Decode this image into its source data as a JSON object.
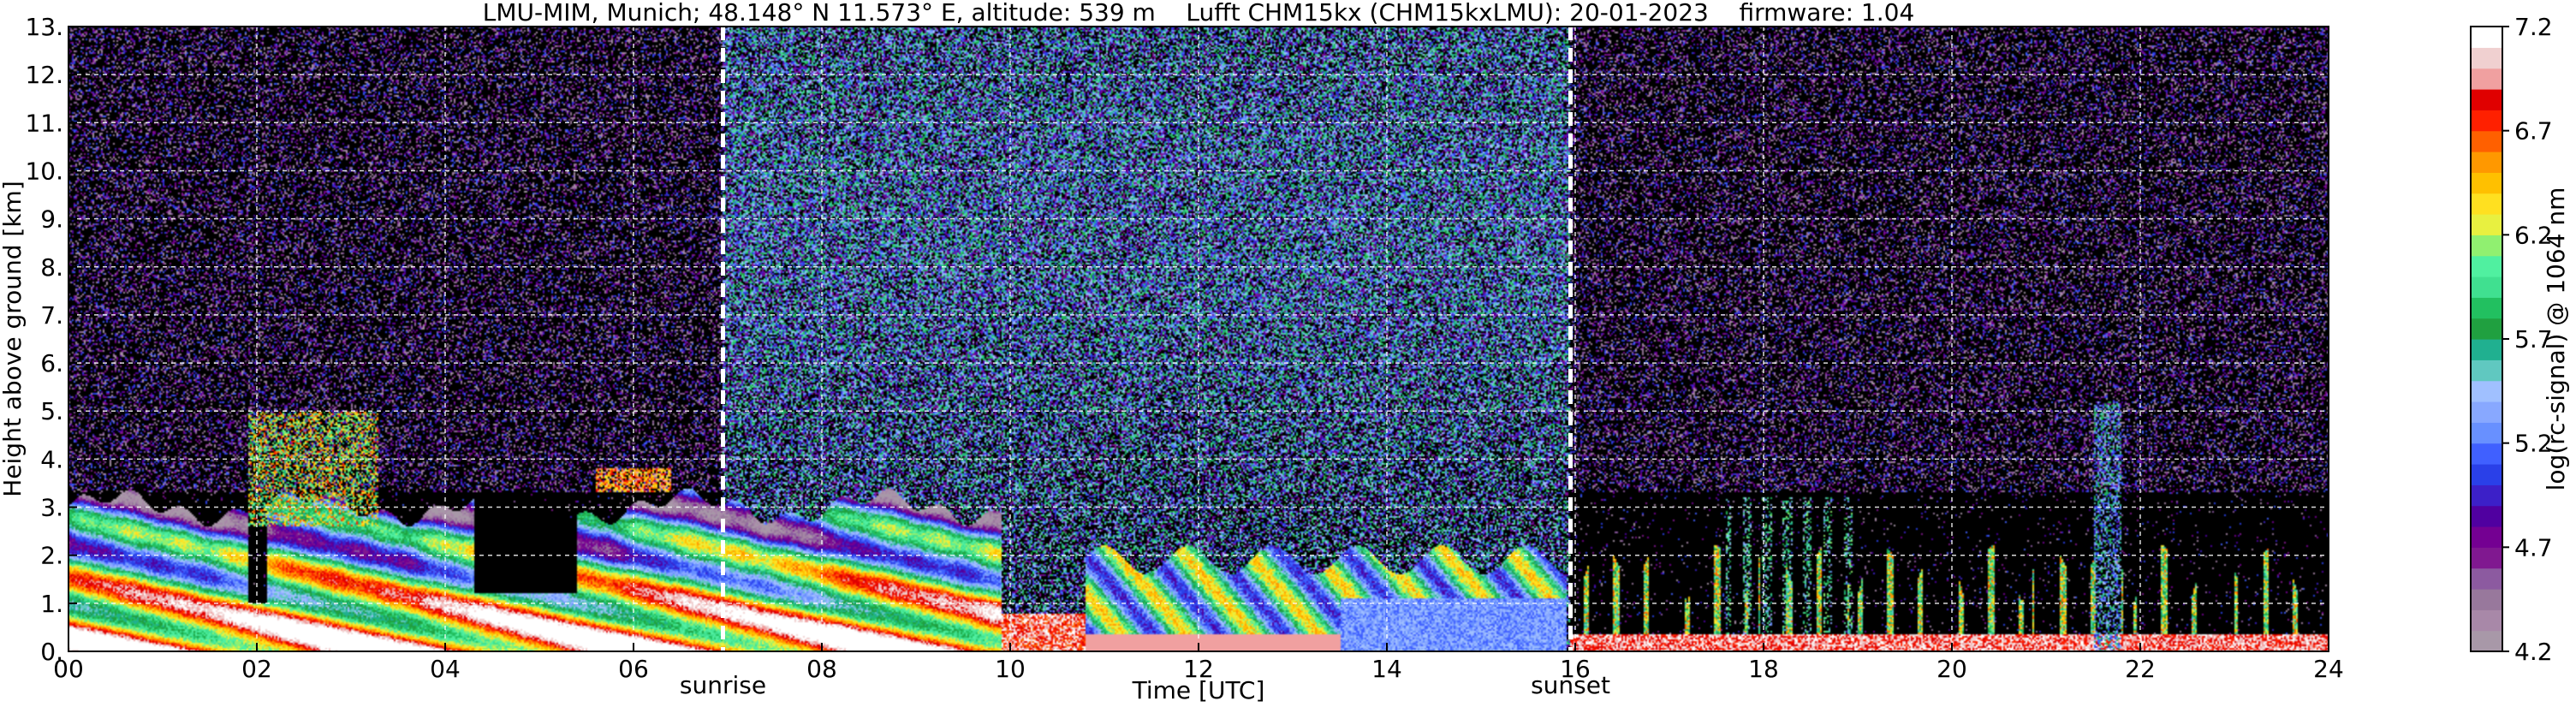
{
  "chart_data": {
    "type": "heatmap",
    "title": "LMU-MIM, Munich; 48.148° N 11.573° E, altitude: 539 m    Lufft CHM15kx (CHM15kxLMU): 20-01-2023    firmware: 1.04",
    "xlabel": "Time [UTC]",
    "ylabel": "Height above ground [km]",
    "xlim": [
      0,
      24
    ],
    "ylim": [
      0,
      13
    ],
    "x_ticks": [
      "00",
      "02",
      "04",
      "06",
      "08",
      "10",
      "12",
      "14",
      "16",
      "18",
      "20",
      "22",
      "24"
    ],
    "y_ticks": [
      "0.",
      "1.",
      "2.",
      "3.",
      "4.",
      "5.",
      "6.",
      "7.",
      "8.",
      "9.",
      "10.",
      "11.",
      "12.",
      "13."
    ],
    "grid": true,
    "annotations": [
      {
        "label": "sunrise",
        "x": 6.95
      },
      {
        "label": "sunset",
        "x": 15.95
      }
    ],
    "colorbar": {
      "label": "log(rc-signal) @ 1064 nm",
      "range": [
        4.2,
        7.2
      ],
      "ticks": [
        "4.2",
        "4.7",
        "5.2",
        "5.7",
        "6.2",
        "6.7",
        "7.2"
      ],
      "colors": [
        "#a898a8",
        "#a888a8",
        "#98789c",
        "#8c5aa0",
        "#801890",
        "#740092",
        "#5000a0",
        "#3c20c8",
        "#2a40e8",
        "#4060ff",
        "#6890ff",
        "#88a8ff",
        "#a0c0ff",
        "#60c8c0",
        "#20b090",
        "#20a040",
        "#22c060",
        "#40e090",
        "#50f0a0",
        "#90f070",
        "#e8f040",
        "#ffe020",
        "#ffc000",
        "#ff9800",
        "#ff6000",
        "#ff2000",
        "#e00000",
        "#f0a0a0",
        "#f0d0d0",
        "#ffffff"
      ]
    },
    "layers": [
      {
        "name": "noise",
        "t": [
          0,
          24
        ],
        "h": [
          0,
          13
        ]
      },
      {
        "name": "boundary layer",
        "t": [
          0,
          9.9
        ],
        "h": [
          0,
          3.3
        ]
      },
      {
        "name": "elevated layer",
        "t": [
          1.9,
          3.3
        ],
        "h": [
          2.6,
          5.0
        ]
      },
      {
        "name": "cloud",
        "t": [
          5.6,
          6.4
        ],
        "h": [
          3.3,
          3.8
        ]
      },
      {
        "name": "boundary layer",
        "t": [
          10.8,
          15.9
        ],
        "h": [
          0,
          2.0
        ]
      },
      {
        "name": "evening layer",
        "t": [
          16.0,
          24
        ],
        "h": [
          0,
          3.3
        ]
      },
      {
        "name": "plume",
        "t": [
          21.5,
          21.8
        ],
        "h": [
          0,
          5.2
        ]
      }
    ]
  }
}
